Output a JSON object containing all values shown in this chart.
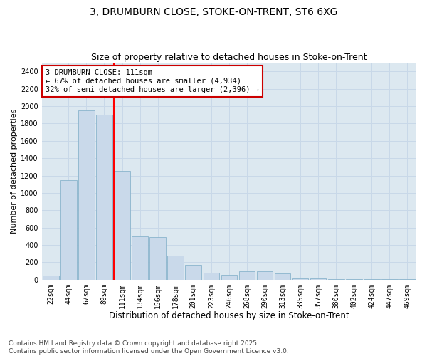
{
  "title_line1": "3, DRUMBURN CLOSE, STOKE-ON-TRENT, ST6 6XG",
  "title_line2": "Size of property relative to detached houses in Stoke-on-Trent",
  "xlabel": "Distribution of detached houses by size in Stoke-on-Trent",
  "ylabel": "Number of detached properties",
  "categories": [
    "22sqm",
    "44sqm",
    "67sqm",
    "89sqm",
    "111sqm",
    "134sqm",
    "156sqm",
    "178sqm",
    "201sqm",
    "223sqm",
    "246sqm",
    "268sqm",
    "290sqm",
    "313sqm",
    "335sqm",
    "357sqm",
    "380sqm",
    "402sqm",
    "424sqm",
    "447sqm",
    "469sqm"
  ],
  "values": [
    50,
    1150,
    1950,
    1900,
    1250,
    500,
    490,
    275,
    170,
    80,
    55,
    100,
    100,
    68,
    12,
    18,
    10,
    5,
    5,
    5,
    5
  ],
  "bar_color": "#c9d9ea",
  "bar_edge_color": "#8ab4cc",
  "red_line_index": 4,
  "annotation_title": "3 DRUMBURN CLOSE: 111sqm",
  "annotation_line2": "← 67% of detached houses are smaller (4,934)",
  "annotation_line3": "32% of semi-detached houses are larger (2,396) →",
  "annotation_box_color": "#ffffff",
  "annotation_box_edge": "#cc0000",
  "ylim": [
    0,
    2500
  ],
  "yticks": [
    0,
    200,
    400,
    600,
    800,
    1000,
    1200,
    1400,
    1600,
    1800,
    2000,
    2200,
    2400
  ],
  "grid_color": "#c8d8e8",
  "background_color": "#dce8f0",
  "fig_background_color": "#ffffff",
  "footer_line1": "Contains HM Land Registry data © Crown copyright and database right 2025.",
  "footer_line2": "Contains public sector information licensed under the Open Government Licence v3.0.",
  "title_fontsize": 10,
  "subtitle_fontsize": 9,
  "xlabel_fontsize": 8.5,
  "ylabel_fontsize": 8,
  "tick_fontsize": 7,
  "annotation_fontsize": 7.5,
  "footer_fontsize": 6.5
}
